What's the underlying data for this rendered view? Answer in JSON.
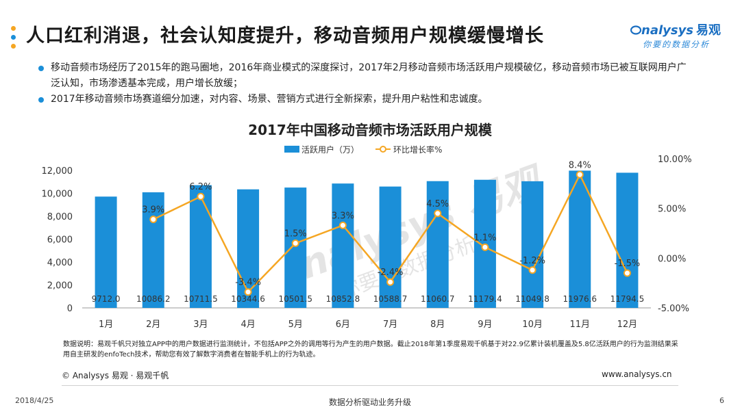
{
  "header": {
    "title": "人口红利消退，社会认知度提升，移动音频用户规模缓慢增长",
    "dot_colors": [
      "#f5a623",
      "#1b8fd8",
      "#f5a623"
    ]
  },
  "logo": {
    "brand": "nalysys",
    "brand_cn": "易观",
    "slogan": "你要的数据分析"
  },
  "bullets": [
    "移动音频市场经历了2015年的跑马圈地，2016年商业模式的深度探讨，2017年2月移动音频市场活跃用户规模破亿，移动音频市场已被互联网用户广泛认知，市场渗透基本完成，用户增长放缓；",
    "2017年移动音频市场赛道细分加速，对内容、场景、营销方式进行全新探索，提升用户粘性和忠诚度。"
  ],
  "watermark": {
    "brand": "nalysys 易观",
    "slogan": "你要的数据分析"
  },
  "chart_data": {
    "type": "bar+line",
    "title": "2017年中国移动音频市场活跃用户规模",
    "categories": [
      "1月",
      "2月",
      "3月",
      "4月",
      "5月",
      "6月",
      "7月",
      "8月",
      "9月",
      "10月",
      "11月",
      "12月"
    ],
    "series": [
      {
        "name": "活跃用户（万）",
        "type": "bar",
        "axis": "left",
        "color": "#1b8fd8",
        "values": [
          9712.0,
          10086.2,
          10711.5,
          10344.6,
          10501.5,
          10852.8,
          10588.7,
          11060.7,
          11179.4,
          11049.8,
          11976.6,
          11794.5
        ],
        "labels": [
          "9712.0",
          "10086.2",
          "10711.5",
          "10344.6",
          "10501.5",
          "10852.8",
          "10588.7",
          "11060.7",
          "11179.4",
          "11049.8",
          "11976.6",
          "11794.5"
        ]
      },
      {
        "name": "环比增长率%",
        "type": "line",
        "axis": "right",
        "color": "#f5a623",
        "values": [
          null,
          3.9,
          6.2,
          -3.4,
          1.5,
          3.3,
          -2.4,
          4.5,
          1.1,
          -1.2,
          8.4,
          -1.5
        ],
        "labels": [
          "",
          "3.9%",
          "6.2%",
          "-3.4%",
          "1.5%",
          "3.3%",
          "-2.4%",
          "4.5%",
          "1.1%",
          "-1.2%",
          "8.4%",
          "-1.5%"
        ]
      }
    ],
    "y_left": {
      "min": 0,
      "max": 12000,
      "ticks": [
        0,
        2000,
        4000,
        6000,
        8000,
        10000,
        12000
      ],
      "tick_labels": [
        "0",
        "2,000",
        "4,000",
        "6,000",
        "8,000",
        "10,000",
        "12,000"
      ]
    },
    "y_right": {
      "min": -5,
      "max": 10,
      "ticks": [
        -5,
        0,
        5,
        10
      ],
      "tick_labels": [
        "-5.00%",
        "0.00%",
        "5.00%",
        "10.00%"
      ]
    },
    "legend": {
      "position": "top-center"
    }
  },
  "note": "数据说明：易观千帆只对独立APP中的用户数据进行监测统计，不包括APP之外的调用等行为产生的用户数据。截止2018年第1季度易观千帆基于对22.9亿累计装机覆盖及5.8亿活跃用户的行为监测结果采用自主研发的enfoTech技术，帮助您有效了解数字消费者在智能手机上的行为轨迹。",
  "footer": {
    "copyright": "© Analysys 易观 · 易观千帆",
    "website": "www.analysys.cn",
    "date": "2018/4/25",
    "center": "数据分析驱动业务升级",
    "page": "6"
  }
}
